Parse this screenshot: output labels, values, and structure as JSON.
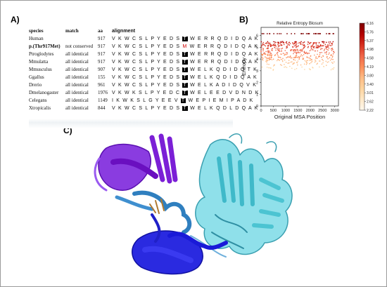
{
  "panels": {
    "a": "A)",
    "b": "B)",
    "c": "C)"
  },
  "alignment_table": {
    "headers": {
      "species": "species",
      "match": "match",
      "aa": "aa",
      "alignment": "alignment"
    },
    "rows": [
      {
        "species": "Human",
        "match": "",
        "aa": "917",
        "pre": "V K W C S L P Y E D S",
        "res": "T",
        "post": "W E R R Q D I D Q A K",
        "bold": false,
        "mut": false
      },
      {
        "species": "p.(Thr917Met)",
        "match": "not conserved",
        "aa": "917",
        "pre": "V K W C S L P Y E D S",
        "res": "M",
        "post": "W E R R Q D I D Q A K",
        "bold": true,
        "mut": true
      },
      {
        "species": "Ptroglodytes",
        "match": "all identical",
        "aa": "917",
        "pre": "V K W C S L P Y E D S",
        "res": "T",
        "post": "W E R R Q D I D Q A K",
        "bold": false,
        "mut": false
      },
      {
        "species": "Mmulatta",
        "match": "all identical",
        "aa": "917",
        "pre": "V K W C S L P Y E D S",
        "res": "T",
        "post": "W E R R Q D I D Q A K",
        "bold": false,
        "mut": false
      },
      {
        "species": "Mmusculus",
        "match": "all identical",
        "aa": "907",
        "pre": "V K W C S L P Y E D S",
        "res": "T",
        "post": "W E L K Q D I D Q T K",
        "bold": false,
        "mut": false
      },
      {
        "species": "Ggallus",
        "match": "all identical",
        "aa": "155",
        "pre": "V K W C S L P Y E D S",
        "res": "T",
        "post": "W E L K Q D I D Q A K",
        "bold": false,
        "mut": false
      },
      {
        "species": "Drerio",
        "match": "all identical",
        "aa": "961",
        "pre": "V K W C S L P Y E D S",
        "res": "T",
        "post": "W E L K A D I D Q V K",
        "bold": false,
        "mut": false
      },
      {
        "species": "Dmelanogaster",
        "match": "all identical",
        "aa": "1976",
        "pre": "V K W K S L P Y E D C",
        "res": "T",
        "post": "W E L E E D V D N D K",
        "bold": false,
        "mut": false
      },
      {
        "species": "Celegans",
        "match": "all identical",
        "aa": "1149",
        "pre": "I K W K S L G Y E E V",
        "res": "T",
        "post": "W E P I E M I P A D K",
        "bold": false,
        "mut": false
      },
      {
        "species": "Xtropicalis",
        "match": "all identical",
        "aa": "844",
        "pre": "V K W C S L P Y E D S",
        "res": "T",
        "post": "W E L K Q D L D Q A K",
        "bold": false,
        "mut": false
      }
    ]
  },
  "chart_data": {
    "type": "scatter",
    "title": "Relative Entropy Blosum",
    "xlabel": "Original MSA Position",
    "ylabel": "Entropy",
    "xlim": [
      0,
      3150
    ],
    "ylim": [
      0,
      6.7
    ],
    "xticks": [
      0,
      500,
      1000,
      1500,
      2000,
      2500,
      3000
    ],
    "yticks": [
      0,
      1,
      2,
      3,
      4,
      5,
      6
    ],
    "colorbar": {
      "min": 2.22,
      "max": 6.16,
      "ticks": [
        "6.16",
        "5.76",
        "5.37",
        "4.98",
        "4.58",
        "4.19",
        "3.80",
        "3.40",
        "3.01",
        "2.62",
        "2.22"
      ],
      "colors": [
        "#7f0000",
        "#b30000",
        "#d7301f",
        "#ef6548",
        "#fc8d59",
        "#fdbb84",
        "#fdd49e",
        "#fee8c8",
        "#fff7ec"
      ]
    },
    "top_band_y": 6.16,
    "main_band": {
      "x_range": [
        0,
        3000
      ],
      "y_range": [
        3.0,
        5.5
      ]
    },
    "grid": false
  },
  "structure": {
    "domains": [
      {
        "name": "purple",
        "color": "#7b1fd6"
      },
      {
        "name": "blue",
        "color": "#1a1ad8"
      },
      {
        "name": "steelblue",
        "color": "#2f7fbf"
      },
      {
        "name": "cyan",
        "color": "#6fd3e0"
      }
    ]
  }
}
